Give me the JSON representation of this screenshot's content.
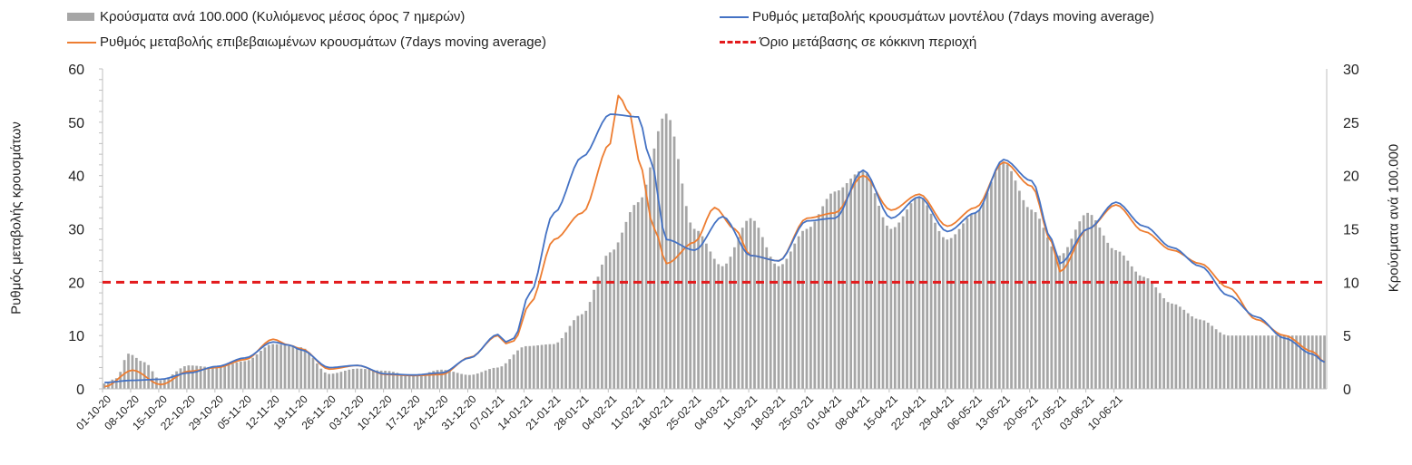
{
  "chart_data": {
    "type": "bar+line",
    "title": "",
    "legend": [
      {
        "name": "Κρούσματα ανά 100.000 (Κυλιόμενος μέσος όρος 7 ημερών)",
        "kind": "bar",
        "color": "#a6a6a6"
      },
      {
        "name": "Ρυθμός μεταβολής κρουσμάτων μοντέλου (7days moving average)",
        "kind": "line",
        "color": "#4472c4"
      },
      {
        "name": "Ρυθμός μεταβολής επιβεβαιωμένων κρουσμάτων (7days moving average)",
        "kind": "line",
        "color": "#ed7d31"
      },
      {
        "name": "Όριο μετάβασης σε κόκκινη περιοχή",
        "kind": "dashed",
        "color": "#e31a1c"
      }
    ],
    "ylabel_left": "Ρυθμός μεταβολής κρουσμάτων",
    "ylabel_right": "Κρούσματα ανά 100.000",
    "ylim_left": [
      0,
      60
    ],
    "ylim_right": [
      0,
      30
    ],
    "yticks_left": [
      "0",
      "10",
      "20",
      "30",
      "40",
      "50",
      "60"
    ],
    "yticks_right": [
      "0",
      "5",
      "10",
      "15",
      "20",
      "25",
      "30"
    ],
    "x_tick_labels": [
      "01-10-20",
      "08-10-20",
      "15-10-20",
      "22-10-20",
      "29-10-20",
      "05-11-20",
      "12-11-20",
      "19-11-20",
      "26-11-20",
      "03-12-20",
      "10-12-20",
      "17-12-20",
      "24-12-20",
      "31-12-20",
      "07-01-21",
      "14-01-21",
      "21-01-21",
      "28-01-21",
      "04-02-21",
      "11-02-21",
      "18-02-21",
      "25-02-21",
      "04-03-21",
      "11-03-21",
      "18-03-21",
      "25-03-21",
      "01-04-21",
      "08-04-21",
      "15-04-21",
      "22-04-21",
      "29-04-21",
      "06-05-21",
      "13-05-21",
      "20-05-21",
      "27-05-21",
      "03-06-21",
      "10-06-21"
    ],
    "threshold_left": 20,
    "bar_anchors_right_axis": [
      [
        0,
        0.5
      ],
      [
        3,
        1
      ],
      [
        6,
        3.3
      ],
      [
        10,
        2.5
      ],
      [
        14,
        0.8
      ],
      [
        21,
        2.2
      ],
      [
        28,
        2.0
      ],
      [
        35,
        2.6
      ],
      [
        42,
        4.2
      ],
      [
        49,
        3.9
      ],
      [
        56,
        1.4
      ],
      [
        63,
        1.9
      ],
      [
        70,
        1.7
      ],
      [
        77,
        1.2
      ],
      [
        84,
        1.8
      ],
      [
        91,
        1.3
      ],
      [
        98,
        2.0
      ],
      [
        105,
        4.0
      ],
      [
        112,
        4.2
      ],
      [
        119,
        7.0
      ],
      [
        126,
        12.8
      ],
      [
        133,
        17.5
      ],
      [
        140,
        25.8
      ],
      [
        147,
        15.0
      ],
      [
        154,
        11.5
      ],
      [
        161,
        16.0
      ],
      [
        168,
        11.5
      ],
      [
        175,
        15.0
      ],
      [
        182,
        18.5
      ],
      [
        189,
        20.5
      ],
      [
        196,
        15.0
      ],
      [
        203,
        18.0
      ],
      [
        210,
        14.0
      ],
      [
        217,
        16.5
      ],
      [
        224,
        21.3
      ],
      [
        231,
        16.8
      ],
      [
        238,
        12.5
      ],
      [
        245,
        16.5
      ],
      [
        252,
        13.0
      ],
      [
        259,
        10.5
      ],
      [
        266,
        8.0
      ],
      [
        273,
        6.5
      ],
      [
        280,
        5.0
      ]
    ],
    "model_line_anchors_left_axis": [
      [
        0,
        1.2
      ],
      [
        7,
        1.6
      ],
      [
        14,
        1.8
      ],
      [
        21,
        3.0
      ],
      [
        28,
        4.2
      ],
      [
        35,
        5.8
      ],
      [
        42,
        8.8
      ],
      [
        46,
        8.2
      ],
      [
        49,
        7.3
      ],
      [
        56,
        4.0
      ],
      [
        63,
        4.4
      ],
      [
        70,
        2.8
      ],
      [
        77,
        2.6
      ],
      [
        84,
        3.0
      ],
      [
        91,
        5.8
      ],
      [
        98,
        10.2
      ],
      [
        100,
        8.8
      ],
      [
        102,
        9.5
      ],
      [
        106,
        18.0
      ],
      [
        112,
        33.0
      ],
      [
        119,
        43.5
      ],
      [
        126,
        51.5
      ],
      [
        133,
        51.0
      ],
      [
        136,
        43.0
      ],
      [
        140,
        28.0
      ],
      [
        147,
        26.0
      ],
      [
        154,
        32.3
      ],
      [
        161,
        25.0
      ],
      [
        168,
        24.0
      ],
      [
        175,
        31.5
      ],
      [
        182,
        32.0
      ],
      [
        189,
        41.0
      ],
      [
        196,
        32.0
      ],
      [
        203,
        36.0
      ],
      [
        210,
        29.5
      ],
      [
        217,
        33.0
      ],
      [
        224,
        43.0
      ],
      [
        231,
        39.0
      ],
      [
        236,
        28.0
      ],
      [
        238,
        23.5
      ],
      [
        245,
        30.0
      ],
      [
        252,
        35.0
      ],
      [
        259,
        30.5
      ],
      [
        266,
        26.5
      ],
      [
        273,
        23.0
      ],
      [
        280,
        17.5
      ],
      [
        287,
        13.5
      ],
      [
        294,
        9.5
      ],
      [
        301,
        6.5
      ],
      [
        304,
        5.0
      ]
    ],
    "confirmed_line_anchors_left_axis": [
      [
        0,
        0.4
      ],
      [
        7,
        3.5
      ],
      [
        14,
        0.8
      ],
      [
        21,
        3.3
      ],
      [
        28,
        4.0
      ],
      [
        35,
        5.5
      ],
      [
        42,
        9.3
      ],
      [
        46,
        8.2
      ],
      [
        49,
        7.5
      ],
      [
        56,
        3.7
      ],
      [
        63,
        4.4
      ],
      [
        70,
        2.7
      ],
      [
        77,
        2.5
      ],
      [
        84,
        2.7
      ],
      [
        91,
        5.9
      ],
      [
        98,
        10.0
      ],
      [
        100,
        8.5
      ],
      [
        102,
        9.0
      ],
      [
        106,
        16.0
      ],
      [
        112,
        28.0
      ],
      [
        119,
        33.0
      ],
      [
        126,
        46.0
      ],
      [
        128,
        55.0
      ],
      [
        131,
        51.5
      ],
      [
        133,
        43.0
      ],
      [
        137,
        30.0
      ],
      [
        140,
        23.5
      ],
      [
        147,
        27.5
      ],
      [
        152,
        34.0
      ],
      [
        157,
        30.0
      ],
      [
        161,
        25.0
      ],
      [
        168,
        24.0
      ],
      [
        175,
        32.0
      ],
      [
        182,
        33.0
      ],
      [
        189,
        40.0
      ],
      [
        196,
        33.5
      ],
      [
        203,
        36.5
      ],
      [
        210,
        30.5
      ],
      [
        217,
        34.0
      ],
      [
        224,
        42.5
      ],
      [
        231,
        38.0
      ],
      [
        236,
        27.5
      ],
      [
        238,
        22.0
      ],
      [
        245,
        30.0
      ],
      [
        252,
        34.5
      ],
      [
        259,
        29.5
      ],
      [
        266,
        26.0
      ],
      [
        273,
        23.5
      ],
      [
        280,
        19.0
      ],
      [
        287,
        13.0
      ],
      [
        294,
        10.0
      ],
      [
        301,
        7.0
      ],
      [
        304,
        5.0
      ]
    ]
  }
}
